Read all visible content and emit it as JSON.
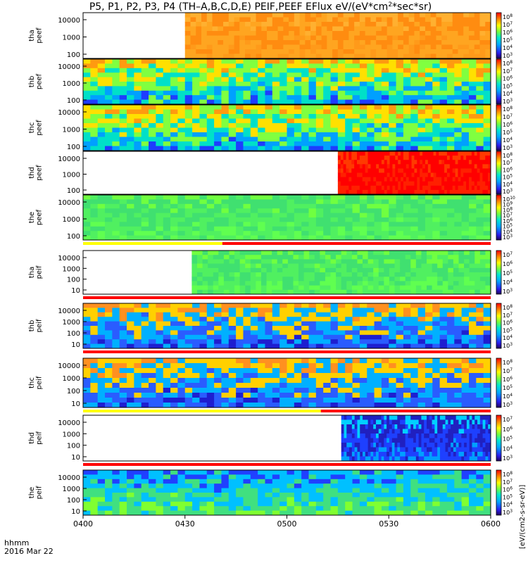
{
  "title": {
    "prefix": "P5, P1, P2, P3, P4 (TH–A,B,C,D,E) PEIF,PEEF EFlux eV/(eV*cm",
    "sup": "2",
    "suffix": "*sec*sr)"
  },
  "colorbar_units": "[eV/(cm2-s-sr-eV)]",
  "time_axis": {
    "ticks": [
      "0400",
      "0430",
      "0500",
      "0530",
      "0600"
    ],
    "label_top": "hhmm",
    "label_bottom": "2016 Mar 22"
  },
  "chart_data": {
    "type": "heatmap",
    "x_range": [
      "04:00",
      "06:00"
    ],
    "panels": [
      {
        "probe": "tha",
        "species": "peef",
        "yticks": [
          "10000",
          "1000",
          "100"
        ],
        "cb_ticks": [
          "8",
          "7",
          "6",
          "5",
          "4",
          "3"
        ],
        "data_start": "04:30",
        "color": "orange",
        "cb_y": 1.0
      },
      {
        "probe": "thb",
        "species": "peef",
        "yticks": [
          "10000",
          "1000",
          "100"
        ],
        "cb_ticks": [
          "8",
          "7",
          "6",
          "5",
          "4",
          "3"
        ],
        "data_start": "04:00",
        "color": "cyan-green-orange",
        "cb_y": 1.0
      },
      {
        "probe": "thc",
        "species": "peef",
        "yticks": [
          "10000",
          "1000",
          "100"
        ],
        "cb_ticks": [
          "8",
          "7",
          "6",
          "5",
          "4",
          "3"
        ],
        "data_start": "04:00",
        "color": "cyan-green-orange",
        "cb_y": 1.0
      },
      {
        "probe": "thd",
        "species": "peef",
        "yticks": [
          "10000",
          "1000",
          "100"
        ],
        "cb_ticks": [
          "8",
          "7",
          "6",
          "5",
          "4",
          "3"
        ],
        "data_start": "05:15",
        "color": "red",
        "cb_y": 1.0
      },
      {
        "probe": "the",
        "species": "peef",
        "yticks": [
          "10000",
          "1000",
          "100"
        ],
        "cb_ticks": [
          "10",
          "9",
          "8",
          "7",
          "6",
          "5",
          "4",
          "3"
        ],
        "data_start": "04:00",
        "color": "green",
        "cb_y": 1.0
      },
      {
        "probe": "tha",
        "species": "peif",
        "yticks": [
          "10000",
          "1000",
          "100",
          "10"
        ],
        "cb_ticks": [
          "7",
          "6",
          "5",
          "4",
          "3"
        ],
        "data_start": "04:32",
        "color": "green",
        "cb_y": 1.0
      },
      {
        "probe": "thb",
        "species": "peif",
        "yticks": [
          "10000",
          "1000",
          "100",
          "10"
        ],
        "cb_ticks": [
          "8",
          "7",
          "6",
          "5",
          "4",
          "3"
        ],
        "data_start": "04:00",
        "color": "blue-orange",
        "cb_y": 1.0
      },
      {
        "probe": "thc",
        "species": "peif",
        "yticks": [
          "10000",
          "1000",
          "100",
          "10"
        ],
        "cb_ticks": [
          "8",
          "7",
          "6",
          "5",
          "4",
          "3"
        ],
        "data_start": "04:00",
        "color": "blue-orange",
        "cb_y": 1.0
      },
      {
        "probe": "thd",
        "species": "peif",
        "yticks": [
          "10000",
          "1000",
          "100",
          "10"
        ],
        "cb_ticks": [
          "7",
          "6",
          "5",
          "4",
          "3"
        ],
        "data_start": "05:16",
        "color": "blue",
        "cb_y": 1.0
      },
      {
        "probe": "the",
        "species": "peif",
        "yticks": [
          "10000",
          "1000",
          "100",
          "10"
        ],
        "cb_ticks": [
          "8",
          "7",
          "6",
          "5",
          "4",
          "3"
        ],
        "data_start": "04:00",
        "color": "green-blue",
        "cb_y": 1.0
      }
    ],
    "mode_bars": [
      {
        "after_panel": 4,
        "segments": [
          {
            "color": "#ffff00",
            "to": "04:41"
          },
          {
            "color": "#ff0000",
            "to": "06:00"
          }
        ]
      },
      {
        "after_panel": 5,
        "segments": [
          {
            "color": "#ff0000",
            "to": "06:00"
          }
        ]
      },
      {
        "after_panel": 6,
        "segments": [
          {
            "color": "#ff0000",
            "to": "06:00"
          }
        ]
      },
      {
        "after_panel": 7,
        "segments": [
          {
            "color": "#ffff00",
            "to": "05:10"
          },
          {
            "color": "#ff0000",
            "to": "06:00"
          }
        ]
      },
      {
        "after_panel": 8,
        "segments": [
          {
            "color": "#ff0000",
            "to": "06:00"
          }
        ]
      }
    ]
  }
}
